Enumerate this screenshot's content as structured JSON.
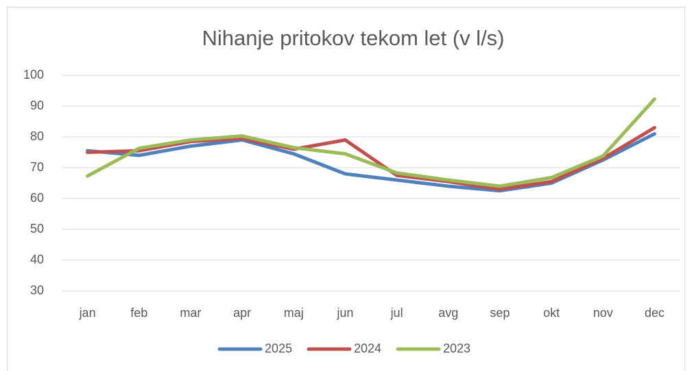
{
  "chart_data": {
    "type": "line",
    "title": "Nihanje pritokov tekom let (v l/s)",
    "categories": [
      "jan",
      "feb",
      "mar",
      "apr",
      "maj",
      "jun",
      "jul",
      "avg",
      "sep",
      "okt",
      "nov",
      "dec"
    ],
    "series": [
      {
        "name": "2025",
        "color": "#4f81bd",
        "values": [
          75.5,
          74,
          77,
          79,
          74.5,
          68,
          66,
          64,
          62.5,
          65,
          72.5,
          81
        ]
      },
      {
        "name": "2024",
        "color": "#c0504d",
        "values": [
          75,
          75.5,
          78.5,
          79.5,
          76,
          79,
          67.5,
          65.5,
          63,
          65.5,
          73,
          83
        ]
      },
      {
        "name": "2023",
        "color": "#9bbb59",
        "values": [
          67.3,
          76.3,
          79,
          80.3,
          76.5,
          74.5,
          68.3,
          66,
          64,
          66.8,
          73.8,
          92.3
        ]
      }
    ],
    "ylim": [
      30,
      100
    ],
    "yticks": [
      30,
      40,
      50,
      60,
      70,
      80,
      90,
      100
    ],
    "grid": true,
    "legend": "bottom"
  }
}
